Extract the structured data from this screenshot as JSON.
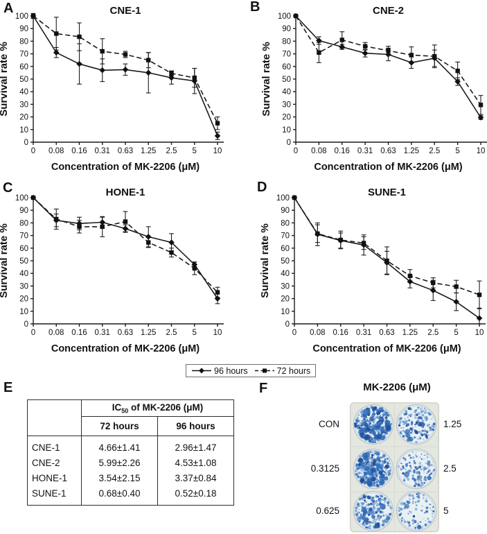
{
  "panels": {
    "a": "A",
    "b": "B",
    "c": "C",
    "d": "D",
    "e": "E",
    "f": "F"
  },
  "chart_data": [
    {
      "type": "line",
      "panel": "A",
      "title": "CNE-1",
      "xlabel": "Concentration of MK-2206 (μM)",
      "ylabel": "Survival rate %",
      "ylim": [
        0,
        100
      ],
      "ytick_step": 10,
      "grid": false,
      "x_categories": [
        "0",
        "0.08",
        "0.16",
        "0.31",
        "0.63",
        "1.25",
        "2.5",
        "5",
        "10"
      ],
      "series": [
        {
          "name": "96 hours",
          "line": "solid",
          "marker": "diamond",
          "values": [
            100,
            71,
            62,
            57,
            57.5,
            55,
            51,
            48.5,
            5
          ],
          "errors": [
            0,
            4,
            16,
            9,
            4.5,
            16,
            5,
            10,
            3
          ]
        },
        {
          "name": "72 hours",
          "line": "dashed",
          "marker": "square",
          "values": [
            100,
            86,
            83.5,
            72,
            69.5,
            65,
            54.5,
            51,
            15
          ],
          "errors": [
            2,
            13,
            11,
            10,
            2.5,
            6,
            2,
            7.5,
            5
          ]
        }
      ]
    },
    {
      "type": "line",
      "panel": "B",
      "title": "CNE-2",
      "xlabel": "Concentration of MK-2206 (μM)",
      "ylabel": "Survival rate %",
      "ylim": [
        0,
        100
      ],
      "ytick_step": 10,
      "grid": false,
      "x_categories": [
        "0",
        "0.08",
        "0.16",
        "0.31",
        "0.63",
        "1.25",
        "2.5",
        "5",
        "10"
      ],
      "series": [
        {
          "name": "96 hours",
          "line": "solid",
          "marker": "diamond",
          "values": [
            100,
            80.5,
            75.5,
            70.5,
            69.5,
            63,
            66.5,
            48,
            19.5
          ],
          "errors": [
            0,
            3,
            2,
            3,
            5,
            4.5,
            6.5,
            3,
            1.5
          ]
        },
        {
          "name": "72 hours",
          "line": "dashed",
          "marker": "square",
          "values": [
            100,
            71,
            81,
            76,
            72.5,
            69,
            68,
            56.5,
            29.5
          ],
          "errors": [
            0,
            8,
            6.5,
            3,
            3.5,
            6.5,
            9,
            7,
            7.5
          ]
        }
      ]
    },
    {
      "type": "line",
      "panel": "C",
      "title": "HONE-1",
      "xlabel": "Concentration of MK-2206 (μM)",
      "ylabel": "Survival rate %",
      "ylim": [
        0,
        100
      ],
      "ytick_step": 10,
      "grid": false,
      "x_categories": [
        "0",
        "0.08",
        "0.16",
        "0.31",
        "0.63",
        "1.25",
        "2.5",
        "5",
        "10"
      ],
      "series": [
        {
          "name": "96 hours",
          "line": "solid",
          "marker": "diamond",
          "values": [
            100,
            82,
            79.5,
            80.5,
            75.5,
            69,
            64.5,
            47,
            20
          ],
          "errors": [
            0,
            5,
            5,
            4,
            3,
            8,
            7,
            2,
            4
          ]
        },
        {
          "name": "72 hours",
          "line": "dashed",
          "marker": "square",
          "values": [
            100,
            83,
            77,
            77,
            81,
            64.5,
            56.5,
            44,
            25
          ],
          "errors": [
            0,
            8,
            5,
            8,
            8,
            4,
            3.5,
            5,
            4
          ]
        }
      ]
    },
    {
      "type": "line",
      "panel": "D",
      "title": "SUNE-1",
      "xlabel": "Concentration of MK-2206 (μM)",
      "ylabel": "Survival rate %",
      "ylim": [
        0,
        100
      ],
      "ytick_step": 10,
      "grid": false,
      "x_categories": [
        "0",
        "0.08",
        "0.16",
        "0.31",
        "0.63",
        "1.25",
        "2.5",
        "5",
        "10"
      ],
      "series": [
        {
          "name": "96 hours",
          "line": "solid",
          "marker": "diamond",
          "values": [
            100,
            71,
            66,
            62.5,
            48.5,
            33.5,
            26.5,
            17.5,
            4.5
          ],
          "errors": [
            0,
            9,
            6,
            8,
            9,
            5,
            8,
            7,
            8
          ]
        },
        {
          "name": "72 hours",
          "line": "dashed",
          "marker": "square",
          "values": [
            100,
            71.5,
            66.5,
            64,
            50,
            38,
            32.5,
            29.5,
            23
          ],
          "errors": [
            0,
            7,
            7,
            5,
            11,
            5,
            4,
            5,
            11
          ]
        }
      ]
    }
  ],
  "legend": {
    "entries": [
      {
        "label": "96 hours",
        "line": "solid",
        "marker": "diamond"
      },
      {
        "label": "72 hours",
        "line": "dashed",
        "marker": "square"
      }
    ]
  },
  "ic50_table": {
    "panel": "E",
    "title_prefix": "IC",
    "title_sub": "50",
    "title_suffix": " of MK-2206 (μM)",
    "col_headers": [
      "72 hours",
      "96 hours"
    ],
    "rows": [
      {
        "cell_line": "CNE-1",
        "h72": "4.66±1.41",
        "h96": "2.96±1.47"
      },
      {
        "cell_line": "CNE-2",
        "h72": "5.99±2.26",
        "h96": "4.53±1.08"
      },
      {
        "cell_line": "HONE-1",
        "h72": "3.54±2.15",
        "h96": "3.37±0.84"
      },
      {
        "cell_line": "SUNE-1",
        "h72": "0.68±0.40",
        "h96": "0.52±0.18"
      }
    ]
  },
  "colony_assay": {
    "panel": "F",
    "title": "MK-2206 (μM)",
    "wells": [
      {
        "label": "CON",
        "row": 0,
        "col": 0,
        "side": "left",
        "density": 1.0,
        "blob_level": 1.0
      },
      {
        "label": "1.25",
        "row": 0,
        "col": 1,
        "side": "right",
        "density": 0.5,
        "blob_level": 0.15
      },
      {
        "label": "0.3125",
        "row": 1,
        "col": 0,
        "side": "left",
        "density": 0.95,
        "blob_level": 0.9
      },
      {
        "label": "2.5",
        "row": 1,
        "col": 1,
        "side": "right",
        "density": 0.36,
        "blob_level": 0.08
      },
      {
        "label": "0.625",
        "row": 2,
        "col": 0,
        "side": "left",
        "density": 0.6,
        "blob_level": 0.35
      },
      {
        "label": "5",
        "row": 2,
        "col": 1,
        "side": "right",
        "density": 0.27,
        "blob_level": 0.05
      }
    ],
    "colors": {
      "plate": "#e4e7df",
      "plate_border": "#c6cabf",
      "well_fill": "#e9f0f3",
      "well_rim": "#b9c5cb",
      "dot_palette": [
        "#1d4f9c",
        "#2d66b2",
        "#3f7ac4",
        "#6b9bd2",
        "#8fb3dd"
      ]
    }
  }
}
